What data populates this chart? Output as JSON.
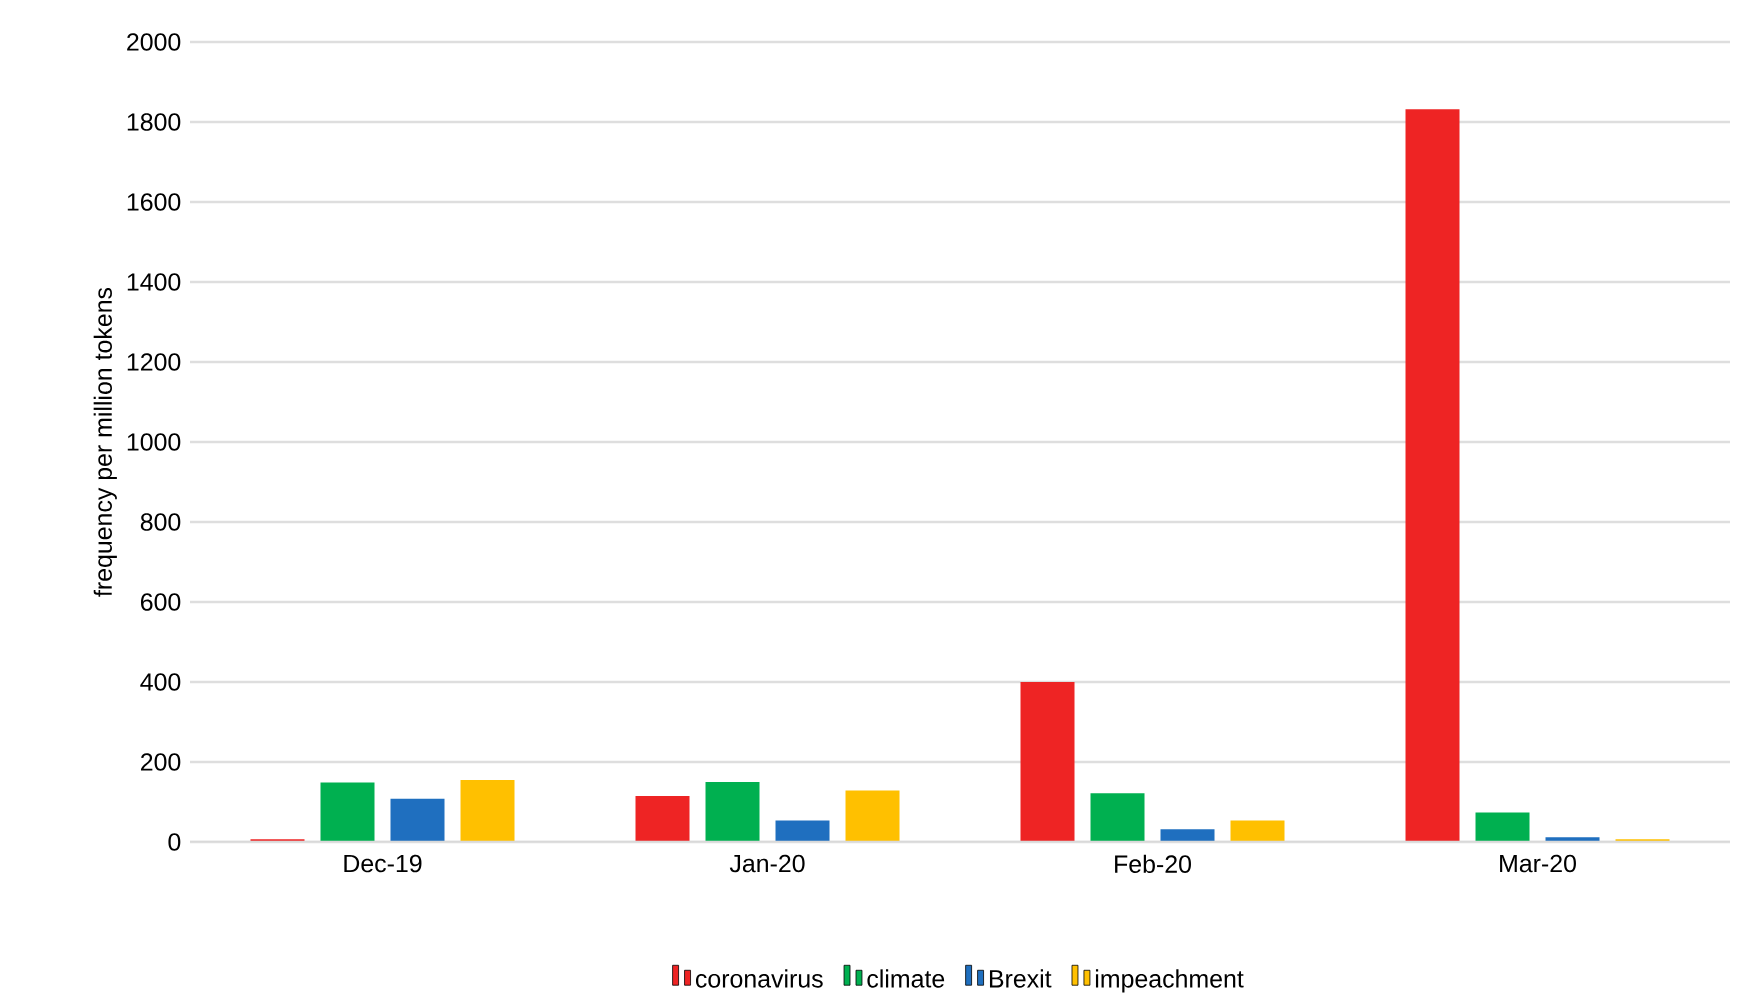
{
  "chart_data": {
    "type": "bar",
    "ylabel": "frequency per million tokens",
    "categories": [
      "Dec-19",
      "Jan-20",
      "Feb-20",
      "Mar-20"
    ],
    "series": [
      {
        "name": "coronavirus",
        "color": "#ee2424",
        "values": [
          7,
          115,
          400,
          1832
        ]
      },
      {
        "name": "climate",
        "color": "#00b050",
        "values": [
          149,
          150,
          122,
          74
        ]
      },
      {
        "name": "Brexit",
        "color": "#1f6fbf",
        "values": [
          108,
          54,
          32,
          12
        ]
      },
      {
        "name": "impeachment",
        "color": "#ffc000",
        "values": [
          155,
          129,
          54,
          7
        ]
      }
    ],
    "ylim": [
      0,
      2000
    ],
    "yticks": [
      0,
      200,
      400,
      600,
      800,
      1000,
      1200,
      1400,
      1600,
      1800,
      2000
    ],
    "grid": "y",
    "legend": "bottom"
  }
}
